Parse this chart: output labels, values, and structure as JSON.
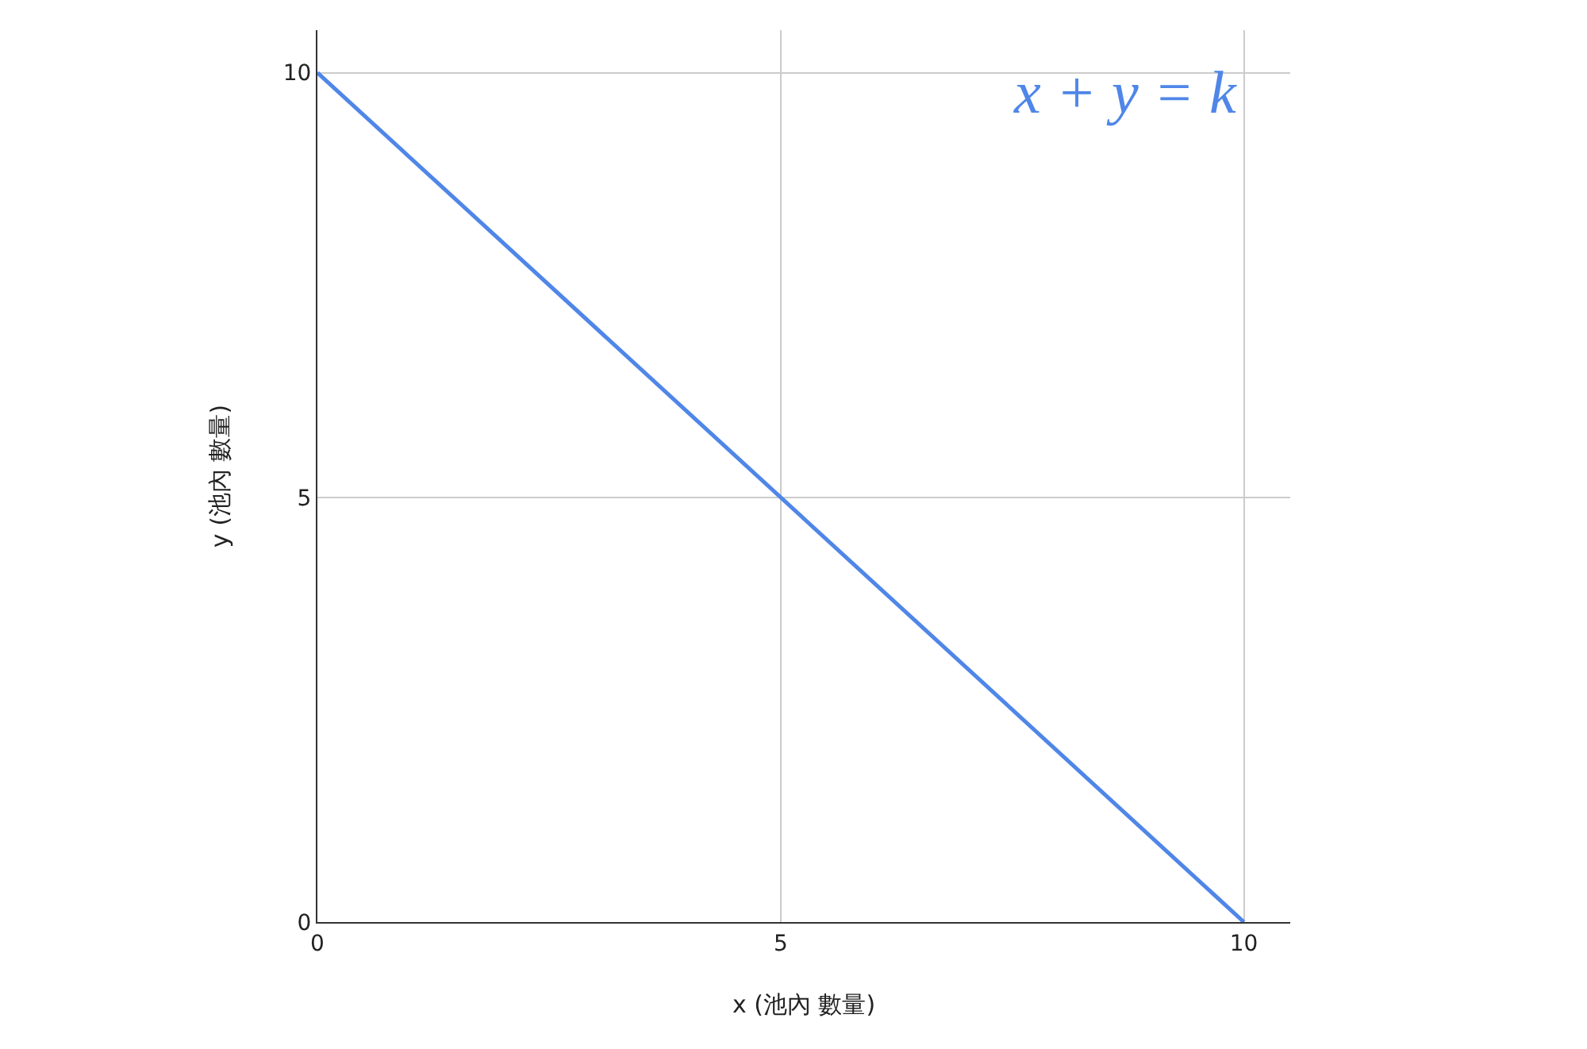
{
  "chart_data": {
    "type": "line",
    "xlabel": "x (池內 數量)",
    "ylabel": "y (池內 數量)",
    "x": [
      0,
      10
    ],
    "series": [
      {
        "color": "#4f86e8",
        "values": [
          10,
          0
        ]
      }
    ],
    "xlim": [
      0,
      10.5
    ],
    "ylim": [
      0,
      10.5
    ],
    "xticks": [
      0,
      5,
      10
    ],
    "yticks": [
      0,
      5,
      10
    ],
    "grid": true,
    "marker": "none",
    "line_style": "solid",
    "annotations": [
      "x + y = k"
    ]
  }
}
